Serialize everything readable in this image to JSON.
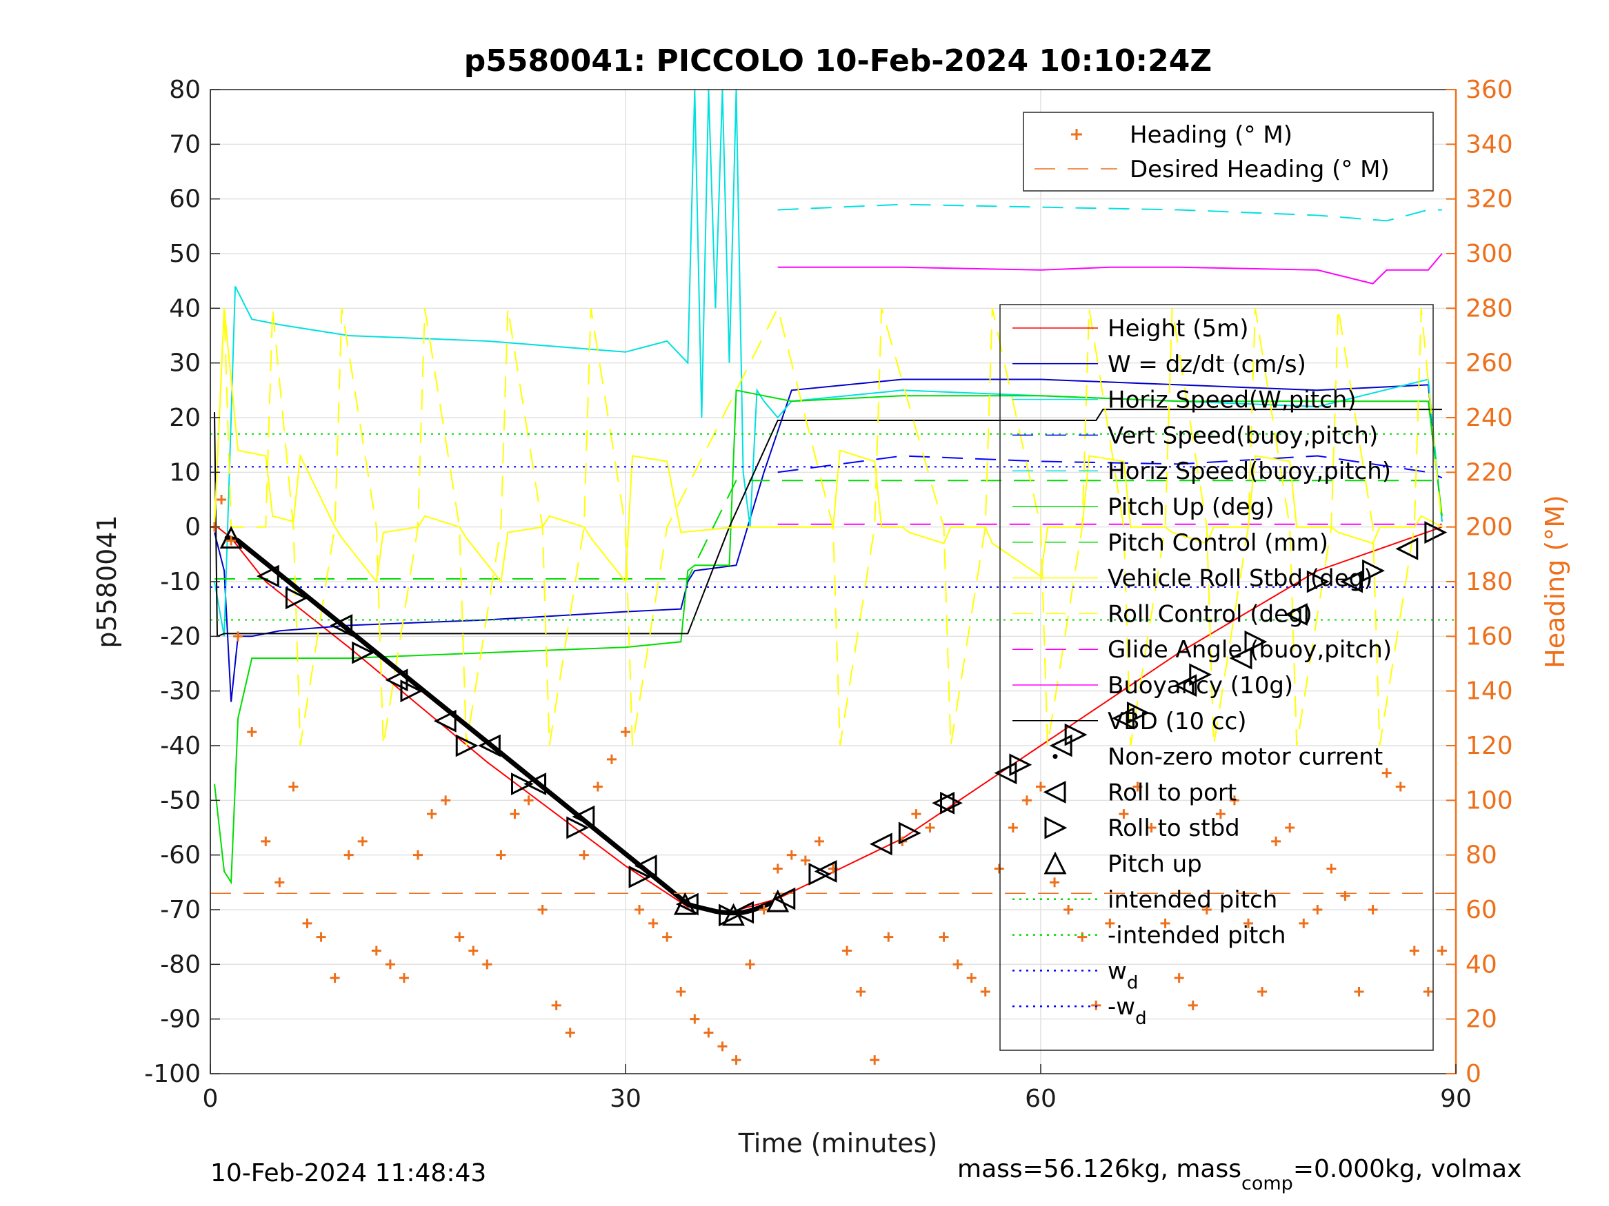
{
  "chart_data": {
    "type": "line",
    "title": "p5580041: PICCOLO 10-Feb-2024 10:10:24Z",
    "xlabel": "Time (minutes)",
    "ylabel": "p5580041",
    "y2label": "Heading (°M)",
    "xlim": [
      0,
      90
    ],
    "ylim": [
      -100,
      80
    ],
    "y2lim": [
      0,
      360
    ],
    "xticks": [
      "0",
      "30",
      "60",
      "90"
    ],
    "yticks": [
      "80",
      "70",
      "60",
      "50",
      "40",
      "30",
      "20",
      "10",
      "0",
      "-10",
      "-20",
      "-30",
      "-40",
      "-50",
      "-60",
      "-70",
      "-80",
      "-90",
      "-100"
    ],
    "y2ticks": [
      "360",
      "340",
      "320",
      "300",
      "280",
      "260",
      "240",
      "220",
      "200",
      "180",
      "160",
      "140",
      "120",
      "100",
      "80",
      "60",
      "40",
      "20",
      "0"
    ],
    "grid": true,
    "footer_left": "10-Feb-2024 11:48:43",
    "footer_right": "mass=56.126kg, mass",
    "footer_sub": "comp",
    "footer_right2": "=0.000kg, volmax",
    "heading_legend": [
      {
        "label": "Heading (° M)",
        "color": "#ee6f1a",
        "marker": "plus"
      },
      {
        "label": "Desired Heading (° M)",
        "color": "#ee6f1a",
        "style": "dashed"
      }
    ],
    "legend": [
      {
        "label": "Height (5m)",
        "color": "#ff0000",
        "style": "solid"
      },
      {
        "label": "W = dz/dt (cm/s)",
        "color": "#0000cc",
        "style": "solid"
      },
      {
        "label": "Horiz Speed(W,pitch)",
        "color": "#00e0e0",
        "style": "solid"
      },
      {
        "label": "Vert Speed(buoy,pitch)",
        "color": "#0000ff",
        "style": "dashed"
      },
      {
        "label": "Horiz Speed(buoy,pitch)",
        "color": "#00e0e0",
        "style": "dashed"
      },
      {
        "label": "Pitch Up (deg)",
        "color": "#00dd00",
        "style": "solid"
      },
      {
        "label": "Pitch Control (mm)",
        "color": "#00dd00",
        "style": "dashed"
      },
      {
        "label": "Vehicle Roll Stbd (deg)",
        "color": "#ffff00",
        "style": "solid"
      },
      {
        "label": "Roll Control (deg)",
        "color": "#ffff00",
        "style": "dashed"
      },
      {
        "label": "Glide Angle (buoy,pitch)",
        "color": "#ff00ff",
        "style": "dashed"
      },
      {
        "label": "Buoyancy (10g)",
        "color": "#ff00ff",
        "style": "solid"
      },
      {
        "label": "VBD (10 cc)",
        "color": "#000000",
        "style": "solid"
      },
      {
        "label": "Non-zero motor current",
        "color": "#000000",
        "marker": "dot"
      },
      {
        "label": "Roll to port",
        "color": "#000000",
        "marker": "tri-left"
      },
      {
        "label": "Roll to stbd",
        "color": "#000000",
        "marker": "tri-right"
      },
      {
        "label": "Pitch up",
        "color": "#000000",
        "marker": "tri-up"
      },
      {
        "label": "intended pitch",
        "color": "#00dd00",
        "style": "dotted"
      },
      {
        "label": "-intended pitch",
        "color": "#00dd00",
        "style": "dotted"
      },
      {
        "label": "w",
        "sub": "d",
        "color": "#0000ff",
        "style": "dotted"
      },
      {
        "label": "-w",
        "sub": "d",
        "color": "#0000ff",
        "style": "dotted"
      }
    ],
    "series": [
      {
        "name": "Height (5m)",
        "color": "#ff0000",
        "x": [
          0.5,
          1.5,
          4,
          10,
          20,
          30,
          34.5,
          37.5,
          41,
          50,
          60,
          70,
          80,
          89
        ],
        "y": [
          0,
          -2,
          -10,
          -22,
          -43,
          -62,
          -69.5,
          -70.5,
          -68,
          -57,
          -40,
          -23,
          -8,
          0
        ]
      },
      {
        "name": "W = dz/dt (cm/s)",
        "color": "#0000cc",
        "x": [
          0.3,
          1,
          1.5,
          2,
          3,
          5,
          10,
          20,
          30,
          34,
          34.5,
          35,
          38,
          40,
          42,
          50,
          60,
          70,
          80,
          88,
          89
        ],
        "y": [
          -1,
          -8,
          -32,
          -20,
          -20,
          -19,
          -18,
          -17,
          -15.5,
          -15,
          -10,
          -8,
          -7,
          10,
          25,
          27,
          27,
          26,
          25,
          26,
          1
        ]
      },
      {
        "name": "Horiz Speed(W,pitch)",
        "color": "#00e0e0",
        "x": [
          0.3,
          1,
          1.8,
          3,
          5,
          10,
          20,
          30,
          33,
          34.5,
          35,
          35.5,
          36,
          36.5,
          37,
          37.5,
          38,
          38.5,
          39,
          39.5,
          40,
          41,
          42,
          50,
          60,
          70,
          80,
          88,
          89
        ],
        "y": [
          -10,
          -20,
          44,
          38,
          37,
          35,
          34,
          32,
          34,
          30,
          80,
          20,
          80,
          40,
          80,
          30,
          80,
          10,
          0,
          25,
          23,
          20,
          23,
          25,
          24,
          23,
          22,
          27,
          1
        ]
      },
      {
        "name": "Horiz Speed(buoy,pitch)",
        "color": "#00e0e0",
        "x": [
          41,
          50,
          60,
          70,
          80,
          85,
          88,
          89
        ],
        "y": [
          58,
          59,
          58.5,
          58,
          57,
          56,
          58,
          58
        ]
      },
      {
        "name": "Vert Speed(buoy,pitch)",
        "color": "#0000ff",
        "x": [
          41,
          50,
          60,
          70,
          80,
          88,
          89
        ],
        "y": [
          10,
          13,
          12,
          11.5,
          13,
          10,
          9
        ]
      },
      {
        "name": "Pitch Up (deg)",
        "color": "#00dd00",
        "x": [
          0.3,
          1,
          1.5,
          2,
          3,
          10,
          20,
          30,
          34,
          34.5,
          35,
          37.5,
          38,
          40,
          42,
          50,
          60,
          70,
          80,
          88,
          89
        ],
        "y": [
          -47,
          -63,
          -65,
          -35,
          -24,
          -24,
          -23,
          -22,
          -21,
          -8,
          -7,
          -7,
          25,
          24,
          23,
          24,
          24,
          23,
          23,
          23,
          2
        ]
      },
      {
        "name": "Pitch Control (mm)",
        "color": "#00dd00",
        "x": [
          0.3,
          34.5,
          38,
          41,
          89
        ],
        "y": [
          -9.5,
          -9.5,
          8.5,
          8.5,
          8.5
        ]
      },
      {
        "name": "Buoyancy (10g)",
        "color": "#ff00ff",
        "x": [
          41,
          50,
          60,
          65,
          70,
          80,
          84,
          85,
          88,
          89
        ],
        "y": [
          47.5,
          47.5,
          47,
          47.5,
          47.5,
          47,
          44.5,
          47,
          47,
          50
        ]
      },
      {
        "name": "Glide Angle (buoy,pitch)",
        "color": "#ff00ff",
        "x": [
          41,
          89
        ],
        "y": [
          0.5,
          0.5
        ]
      },
      {
        "name": "VBD (10 cc)",
        "color": "#000000",
        "x": [
          0.3,
          0.5,
          1,
          2,
          3,
          5,
          10,
          20,
          30,
          34.5,
          37.5,
          41,
          50,
          64,
          64.5,
          70,
          89
        ],
        "y": [
          21,
          -20,
          -19.5,
          -19.5,
          -19.5,
          -19.5,
          -19.5,
          -19.5,
          -19.5,
          -19.5,
          0,
          19.5,
          19.5,
          19.5,
          21.5,
          21.5,
          21.5
        ]
      },
      {
        "name": "Vehicle Roll Stbd (deg)",
        "color": "#ffff00",
        "x": [
          0.3,
          1,
          2,
          4,
          4.5,
          6,
          6.5,
          9,
          9.5,
          12,
          12.5,
          15,
          15.5,
          18,
          18.5,
          21,
          21.5,
          24,
          24.5,
          27,
          27.5,
          30,
          30.5,
          33,
          34,
          38,
          40,
          41,
          45,
          45.5,
          48,
          48.5,
          50,
          50.5,
          53,
          53.5,
          56,
          56.5,
          60,
          60.5,
          63,
          63.5,
          66,
          66.5,
          69,
          69.5,
          72,
          72.5,
          75,
          75.5,
          78,
          78.5,
          81,
          81.5,
          84,
          84.5,
          87,
          87.5,
          89
        ],
        "y": [
          0,
          40,
          14,
          13,
          2,
          1,
          13,
          0,
          -2,
          -10,
          -1,
          0,
          2,
          0,
          -2,
          -10,
          -1,
          0,
          2,
          0,
          -2,
          -10,
          13,
          12,
          -1,
          0,
          0,
          0,
          0,
          14,
          12,
          0,
          0,
          -1,
          -3,
          0,
          0,
          -3,
          -9,
          0,
          0,
          13,
          12,
          0,
          0,
          -1,
          -3,
          0,
          0,
          13,
          12,
          0,
          0,
          -1,
          -3,
          0,
          0,
          2,
          0
        ]
      },
      {
        "name": "Roll Control (deg)",
        "color": "#ffff00",
        "x": [
          0.3,
          1,
          1.5,
          4,
          4.5,
          6,
          6.5,
          9,
          9.5,
          12,
          12.5,
          15,
          15.5,
          18,
          18.5,
          21,
          21.5,
          24,
          24.5,
          27,
          27.5,
          30,
          30.5,
          33,
          41,
          45,
          45.5,
          48,
          48.5,
          53,
          53.5,
          56,
          56.5,
          60,
          60.5,
          63,
          63.5,
          66,
          66.5,
          69,
          69.5,
          72,
          72.5,
          75,
          75.5,
          78,
          78.5,
          81,
          81.5,
          84,
          84.5,
          87,
          87.5,
          89
        ],
        "y": [
          0,
          40,
          0,
          0,
          40,
          0,
          -40,
          0,
          40,
          0,
          -40,
          0,
          40,
          0,
          -40,
          0,
          40,
          0,
          -40,
          0,
          40,
          0,
          -40,
          0,
          40,
          0,
          -40,
          0,
          40,
          0,
          -40,
          0,
          40,
          0,
          -40,
          0,
          40,
          0,
          -40,
          0,
          40,
          0,
          -40,
          0,
          40,
          0,
          -40,
          0,
          40,
          0,
          -40,
          0,
          40,
          0
        ]
      },
      {
        "name": "intended pitch",
        "color": "#00dd00",
        "x": [
          0,
          90
        ],
        "y": [
          17,
          17
        ]
      },
      {
        "name": "-intended pitch",
        "color": "#00dd00",
        "x": [
          0,
          90
        ],
        "y": [
          -17,
          -17
        ]
      },
      {
        "name": "w_d",
        "color": "#0000ff",
        "x": [
          0,
          90
        ],
        "y": [
          11,
          11
        ]
      },
      {
        "name": "-w_d",
        "color": "#0000ff",
        "x": [
          0,
          90
        ],
        "y": [
          -11,
          -11
        ]
      }
    ],
    "motor_current": {
      "x": [
        1.2,
        1.4,
        1.6,
        1.8,
        2.0,
        34.5,
        35,
        35.5,
        36,
        36.5,
        37,
        37.5,
        38,
        38.5,
        39,
        39.5,
        40,
        40.5
      ],
      "y": [
        -2,
        -2,
        -2.2,
        -2.3,
        -2.5,
        -69,
        -69.4,
        -69.7,
        -70,
        -70.3,
        -70.5,
        -70.6,
        -70.6,
        -70.5,
        -70.2,
        -69.8,
        -69.3,
        -68.8
      ]
    },
    "markers": {
      "roll_to_port": {
        "x": [
          4.2,
          9.5,
          13.5,
          17,
          20.2,
          23.5,
          27,
          31.5,
          34.5,
          38.5,
          41.5,
          44.5,
          48.5,
          53,
          57.5,
          61.5,
          66,
          70.5,
          74.5,
          78.5,
          82.5,
          86.5
        ],
        "y": [
          -9,
          -18,
          -28,
          -35.5,
          -40,
          -47,
          -53,
          -62,
          -69,
          -70.5,
          -68,
          -63,
          -58,
          -50.5,
          -45,
          -40,
          -35,
          -29,
          -24,
          -16,
          -10,
          -4
        ]
      },
      "roll_to_stbd": {
        "x": [
          6.2,
          11,
          14.5,
          18.5,
          22.5,
          26.5,
          31,
          37.5,
          44,
          50.5,
          53.5,
          58.5,
          62.5,
          67,
          71.5,
          75.5,
          80,
          84,
          88.5
        ],
        "y": [
          -13,
          -23,
          -30,
          -40,
          -47,
          -55,
          -64,
          -71,
          -63.5,
          -56,
          -50.5,
          -43.5,
          -38,
          -34,
          -27,
          -21,
          -10,
          -8,
          -1
        ]
      },
      "pitch_up": {
        "x": [
          1.5,
          34.3,
          37.8,
          41
        ],
        "y": [
          -2,
          -69,
          -71,
          -68.5
        ]
      }
    },
    "heading": {
      "x": [
        0.3,
        0.8,
        1.5,
        2,
        3,
        4,
        5,
        6,
        7,
        8,
        9,
        10,
        11,
        12,
        13,
        14,
        15,
        16,
        17,
        18,
        19,
        20,
        21,
        22,
        23,
        24,
        25,
        26,
        27,
        28,
        29,
        30,
        31,
        32,
        33,
        34,
        35,
        36,
        37,
        38,
        39,
        40,
        41,
        42,
        43,
        44,
        45,
        46,
        47,
        48,
        49,
        50,
        51,
        52,
        53,
        54,
        55,
        56,
        57,
        58,
        59,
        60,
        61,
        62,
        63,
        64,
        65,
        66,
        67,
        68,
        69,
        70,
        71,
        72,
        73,
        74,
        75,
        76,
        77,
        78,
        79,
        80,
        81,
        82,
        83,
        84,
        85,
        86,
        87,
        88,
        89
      ],
      "y": [
        200,
        210,
        195,
        160,
        125,
        85,
        70,
        105,
        55,
        50,
        35,
        80,
        85,
        45,
        40,
        35,
        80,
        95,
        100,
        50,
        45,
        40,
        80,
        95,
        100,
        60,
        25,
        15,
        80,
        105,
        115,
        125,
        60,
        55,
        50,
        30,
        20,
        15,
        10,
        5,
        40,
        60,
        75,
        80,
        78,
        85,
        75,
        45,
        30,
        5,
        50,
        85,
        95,
        90,
        50,
        40,
        35,
        30,
        75,
        90,
        100,
        105,
        70,
        60,
        50,
        25,
        55,
        95,
        105,
        90,
        55,
        35,
        25,
        60,
        95,
        100,
        55,
        30,
        85,
        90,
        55,
        60,
        75,
        65,
        30,
        60,
        110,
        105,
        45,
        30,
        45
      ]
    },
    "desired_heading": {
      "x": [
        0,
        90
      ],
      "y": [
        66,
        66
      ]
    }
  }
}
